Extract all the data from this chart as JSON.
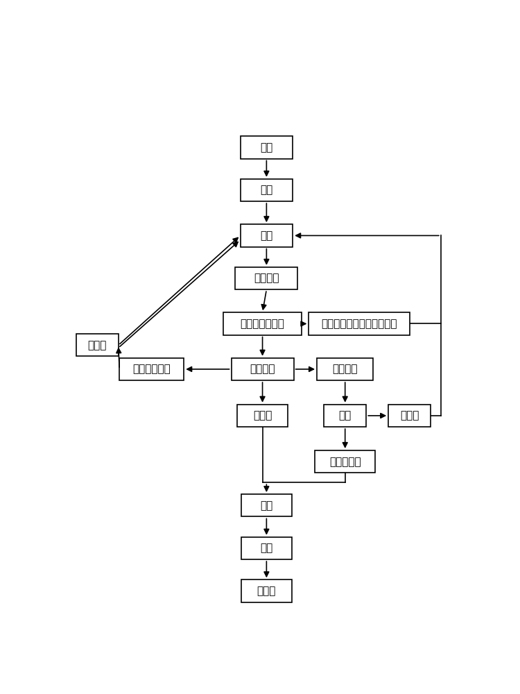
{
  "background_color": "#ffffff",
  "fig_width": 7.5,
  "fig_height": 10.0,
  "boxes": {
    "油料": [
      0.5,
      0.88,
      0.13,
      0.042
    ],
    "浸泡": [
      0.5,
      0.8,
      0.13,
      0.042
    ],
    "打浆": [
      0.5,
      0.715,
      0.13,
      0.042
    ],
    "微波膨化": [
      0.5,
      0.635,
      0.155,
      0.042
    ],
    "微波膨化油料渣": [
      0.49,
      0.55,
      0.195,
      0.042
    ],
    "化学法或酶法合成生物柴油": [
      0.73,
      0.55,
      0.25,
      0.042
    ],
    "茶皂素水溶液": [
      0.215,
      0.465,
      0.16,
      0.042
    ],
    "水浸提油": [
      0.49,
      0.465,
      0.155,
      0.042
    ],
    "油料残渣": [
      0.695,
      0.465,
      0.14,
      0.042
    ],
    "清油层": [
      0.49,
      0.378,
      0.125,
      0.042
    ],
    "醇解": [
      0.695,
      0.378,
      0.105,
      0.042
    ],
    "乳化层R": [
      0.855,
      0.378,
      0.105,
      0.042
    ],
    "分离清油层": [
      0.695,
      0.292,
      0.15,
      0.042
    ],
    "毛油": [
      0.5,
      0.21,
      0.125,
      0.042
    ],
    "精炼": [
      0.5,
      0.13,
      0.125,
      0.042
    ],
    "成品油": [
      0.5,
      0.05,
      0.125,
      0.042
    ],
    "乳化层L": [
      0.08,
      0.51,
      0.105,
      0.042
    ]
  },
  "font_size": 11,
  "box_edge_color": "#000000",
  "box_face_color": "#ffffff",
  "arrow_color": "#000000",
  "line_width": 1.2
}
